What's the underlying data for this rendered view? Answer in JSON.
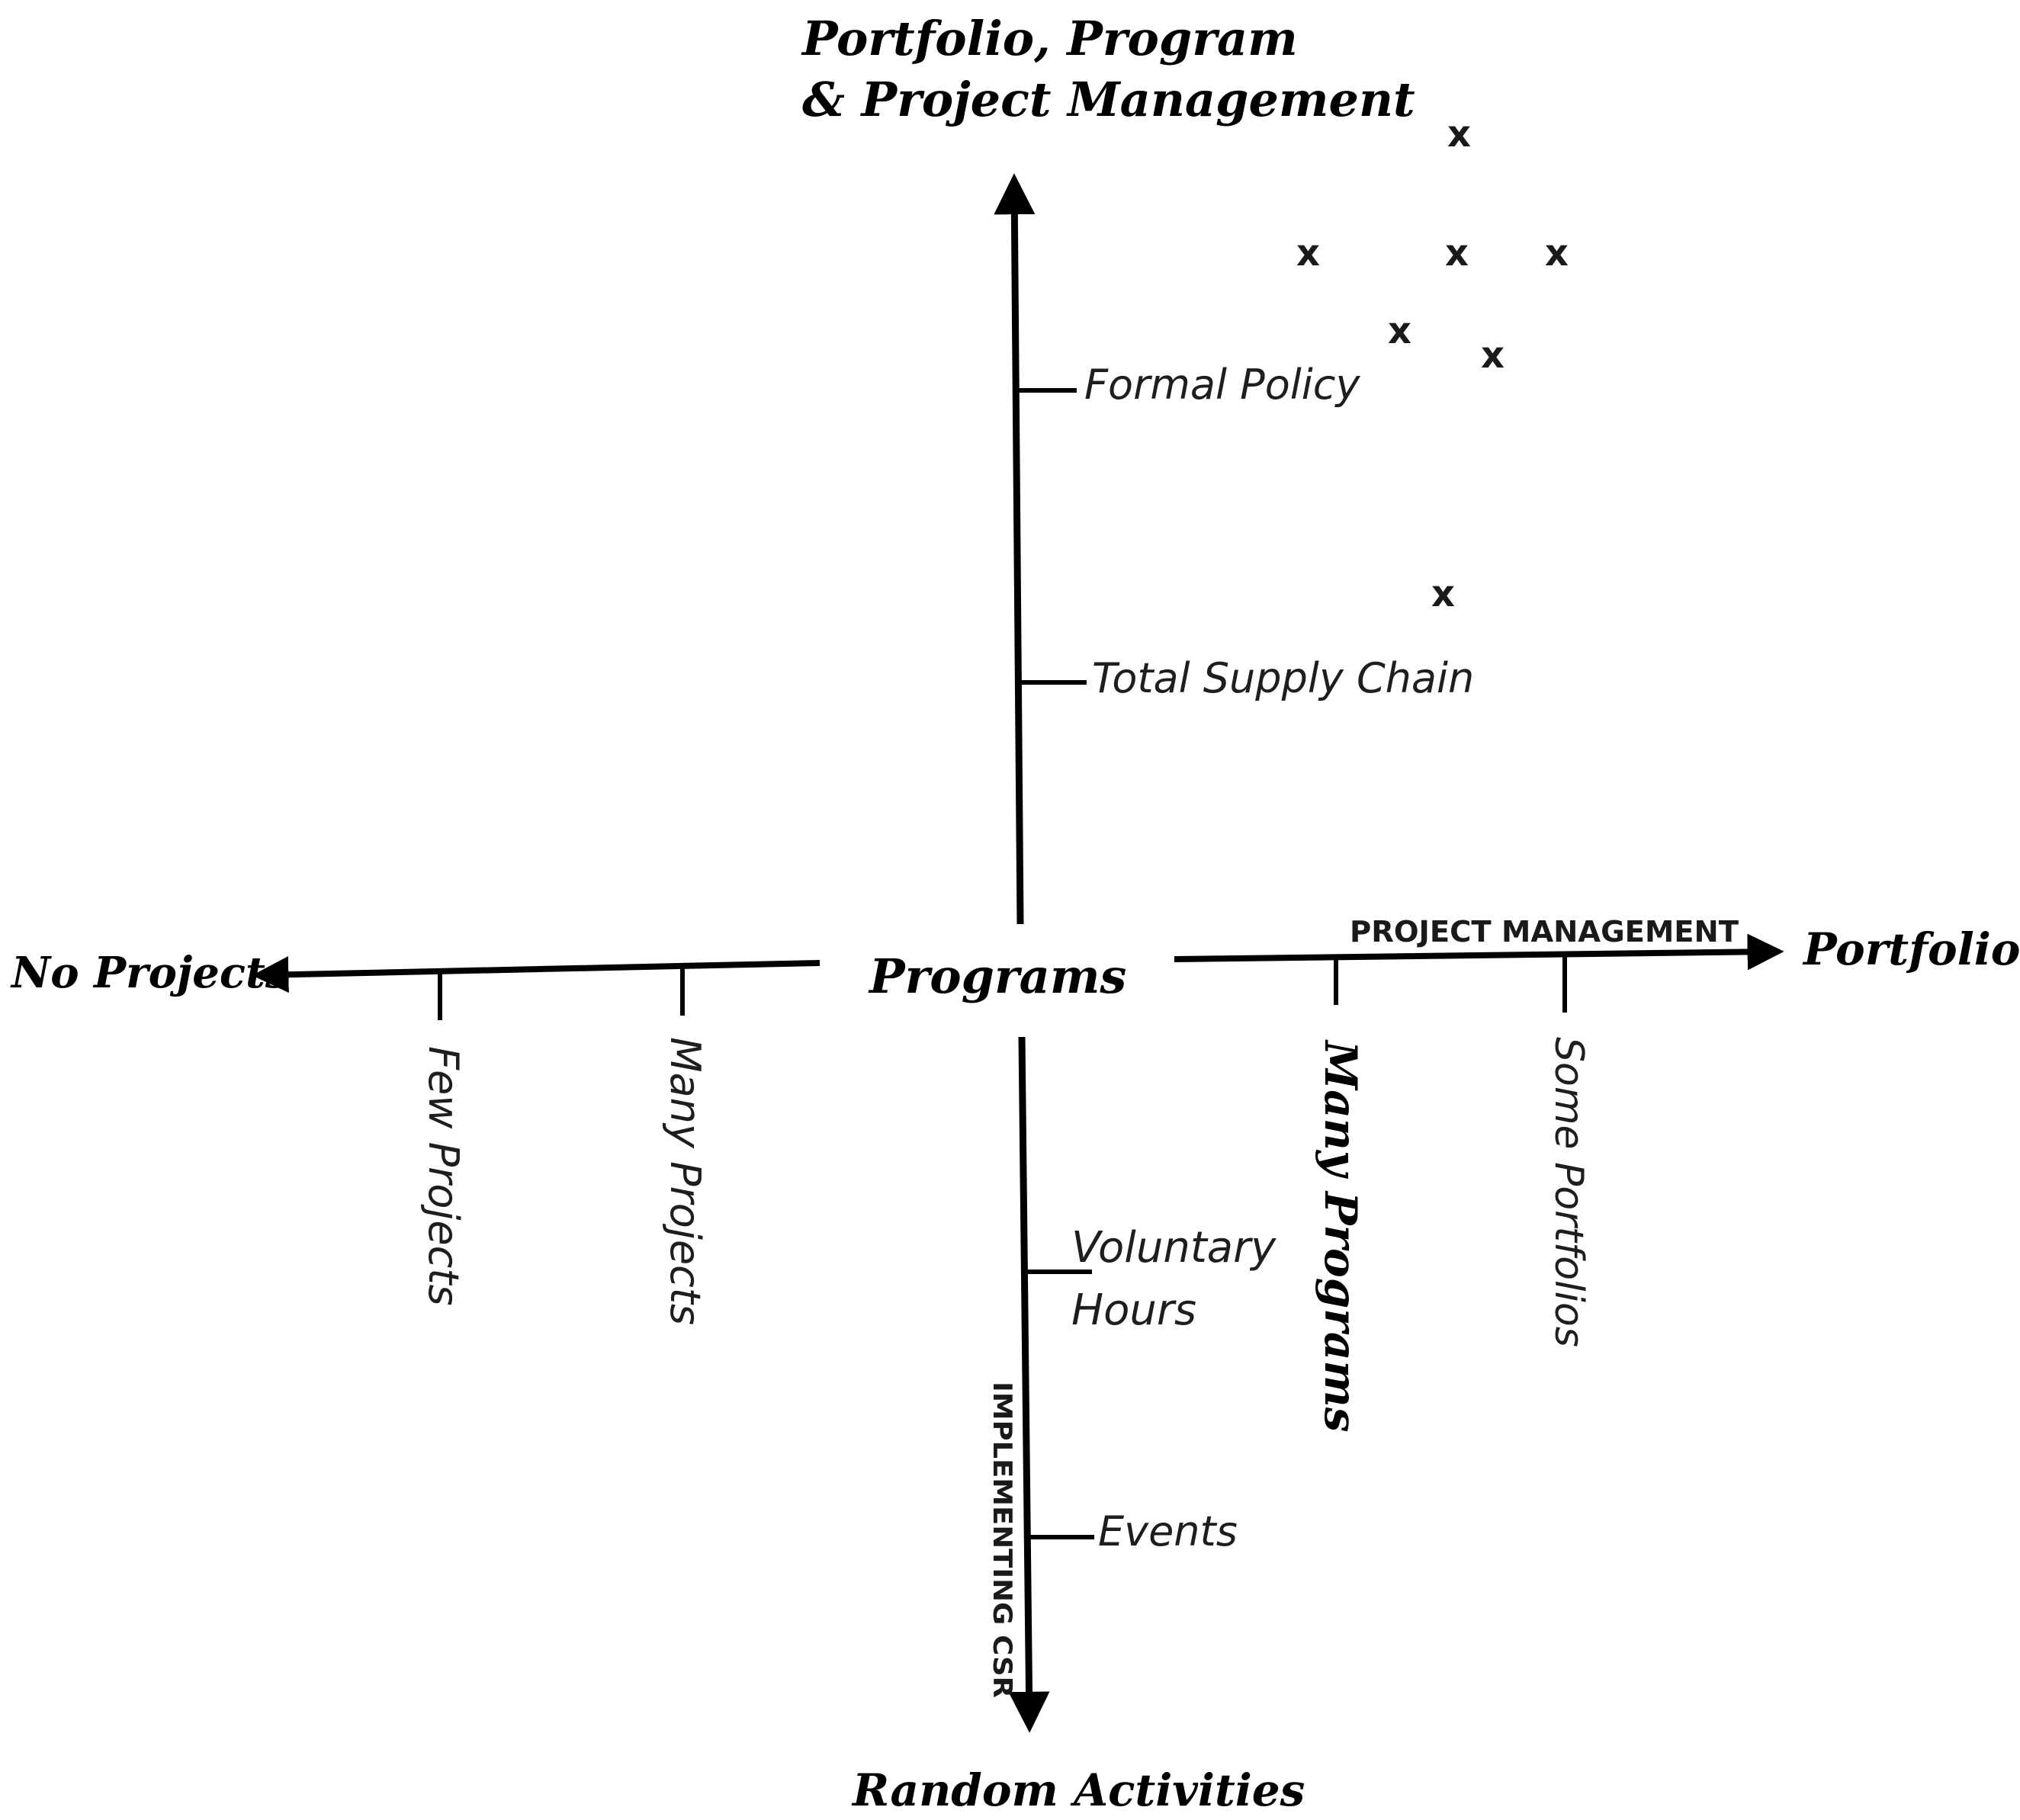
{
  "diagram": {
    "top_label_line1": "Portfolio, Program",
    "top_label_line2": "& Project Management",
    "bottom_label": "Random Activities",
    "left_label": "No Projects",
    "right_label": "Portfolios",
    "center_label": "Programs",
    "horizontal_axis_title": "PROJECT MANAGEMENT",
    "vertical_axis_title": "IMPLEMENTING CSR",
    "ticks": {
      "formal_policy": "Formal Policy",
      "total_supply_chain": "Total Supply Chain",
      "voluntary_hours_line1": "Voluntary",
      "voluntary_hours_line2": "Hours",
      "events": "Events",
      "few_projects": "Few Projects",
      "many_projects": "Many Projects",
      "many_programs": "Many Programs",
      "some_portfolios": "Some Portfolios"
    },
    "marker_symbol": "x",
    "line_color": "#000000"
  }
}
